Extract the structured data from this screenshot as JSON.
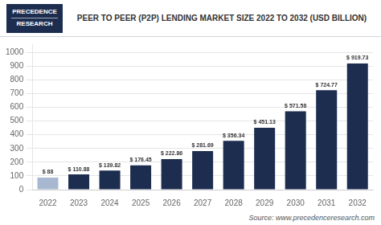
{
  "chart_data": {
    "type": "bar",
    "title": "PEER TO PEER (P2P) LENDING MARKET SIZE 2022 TO 2032 (USD BILLION)",
    "annotations": [
      "PRECEDENCE",
      "RESEARCH",
      "Source: www.precedenceresearch.com"
    ],
    "categories": [
      "2022",
      "2023",
      "2024",
      "2025",
      "2026",
      "2027",
      "2028",
      "2029",
      "2030",
      "2031",
      "2032"
    ],
    "values": [
      88,
      110.88,
      139.82,
      176.45,
      222.86,
      281.69,
      356.34,
      451.13,
      571.58,
      724.77,
      919.73
    ],
    "value_labels": [
      "$ 88",
      "$ 110.88",
      "$ 139.82",
      "$ 176.45",
      "$ 222.86",
      "$ 281.69",
      "$ 356.34",
      "$ 451.13",
      "$ 571.58",
      "$ 724.77",
      "$ 919.73"
    ],
    "data_labels": true,
    "colors": [
      "#a8b8d0",
      "#1c2d50",
      "#1c2d50",
      "#1c2d50",
      "#1c2d50",
      "#1c2d50",
      "#1c2d50",
      "#1c2d50",
      "#1c2d50",
      "#1c2d50",
      "#1c2d50"
    ],
    "ylim": [
      0,
      1060
    ],
    "yticks": [
      0,
      100,
      200,
      300,
      400,
      500,
      600,
      700,
      800,
      900,
      1000
    ],
    "grid": true
  }
}
